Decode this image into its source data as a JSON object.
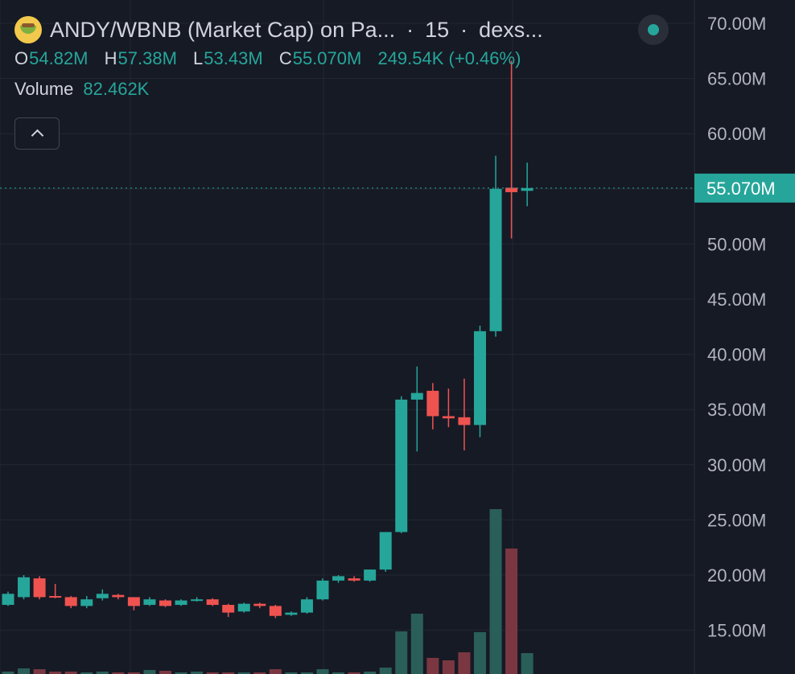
{
  "header": {
    "title": "ANDY/WBNB (Market Cap) on Pa...",
    "interval": "15",
    "source": "dexs..."
  },
  "ohlc": {
    "o_label": "O",
    "o": "54.82M",
    "h_label": "H",
    "h": "57.38M",
    "l_label": "L",
    "l": "53.43M",
    "c_label": "C",
    "c": "55.070M",
    "change": "249.54K (+0.46%)"
  },
  "volume": {
    "label": "Volume",
    "value": "82.462K"
  },
  "colors": {
    "up": "#26a69a",
    "down": "#ef5350",
    "background": "#161a25",
    "grid": "#232733"
  },
  "chart_data": {
    "type": "candlestick",
    "y_axis": {
      "ticks": [
        "70.00M",
        "65.00M",
        "60.00M",
        "55.00M",
        "50.00M",
        "45.00M",
        "40.00M",
        "35.00M",
        "30.00M",
        "25.00M",
        "20.00M",
        "15.00M"
      ],
      "tick_values": [
        70,
        65,
        60,
        55,
        50,
        45,
        40,
        35,
        30,
        25,
        20,
        15
      ],
      "unit": "M",
      "range": [
        11.5,
        72.5
      ]
    },
    "last_price": {
      "label": "55.070M",
      "value": 55.07
    },
    "candles": [
      {
        "o": 17.3,
        "h": 18.5,
        "l": 17.2,
        "c": 18.3
      },
      {
        "o": 18.0,
        "h": 20.0,
        "l": 17.8,
        "c": 19.8
      },
      {
        "o": 19.7,
        "h": 19.9,
        "l": 17.8,
        "c": 18.0
      },
      {
        "o": 18.1,
        "h": 19.2,
        "l": 17.9,
        "c": 18.0
      },
      {
        "o": 18.0,
        "h": 18.1,
        "l": 17.0,
        "c": 17.2
      },
      {
        "o": 17.2,
        "h": 18.1,
        "l": 17.0,
        "c": 17.8
      },
      {
        "o": 17.9,
        "h": 18.7,
        "l": 17.7,
        "c": 18.3
      },
      {
        "o": 18.2,
        "h": 18.3,
        "l": 17.8,
        "c": 18.0
      },
      {
        "o": 18.0,
        "h": 18.0,
        "l": 16.8,
        "c": 17.2
      },
      {
        "o": 17.3,
        "h": 18.0,
        "l": 17.2,
        "c": 17.8
      },
      {
        "o": 17.7,
        "h": 17.8,
        "l": 17.1,
        "c": 17.2
      },
      {
        "o": 17.3,
        "h": 17.8,
        "l": 17.2,
        "c": 17.7
      },
      {
        "o": 17.7,
        "h": 18.0,
        "l": 17.6,
        "c": 17.8
      },
      {
        "o": 17.8,
        "h": 17.9,
        "l": 17.2,
        "c": 17.3
      },
      {
        "o": 17.3,
        "h": 17.4,
        "l": 16.2,
        "c": 16.6
      },
      {
        "o": 16.7,
        "h": 17.5,
        "l": 16.6,
        "c": 17.4
      },
      {
        "o": 17.4,
        "h": 17.5,
        "l": 17.0,
        "c": 17.2
      },
      {
        "o": 17.2,
        "h": 17.3,
        "l": 16.1,
        "c": 16.3
      },
      {
        "o": 16.4,
        "h": 16.7,
        "l": 16.3,
        "c": 16.6
      },
      {
        "o": 16.6,
        "h": 18.0,
        "l": 16.5,
        "c": 17.8
      },
      {
        "o": 17.8,
        "h": 19.7,
        "l": 17.7,
        "c": 19.5
      },
      {
        "o": 19.5,
        "h": 20.0,
        "l": 19.3,
        "c": 19.9
      },
      {
        "o": 19.7,
        "h": 19.9,
        "l": 19.4,
        "c": 19.5
      },
      {
        "o": 19.5,
        "h": 20.5,
        "l": 19.4,
        "c": 20.5
      },
      {
        "o": 20.5,
        "h": 23.9,
        "l": 20.3,
        "c": 23.9
      },
      {
        "o": 23.9,
        "h": 36.2,
        "l": 23.8,
        "c": 35.9
      },
      {
        "o": 35.9,
        "h": 38.9,
        "l": 31.2,
        "c": 36.5
      },
      {
        "o": 36.7,
        "h": 37.4,
        "l": 33.2,
        "c": 34.4
      },
      {
        "o": 34.4,
        "h": 36.9,
        "l": 33.4,
        "c": 34.2
      },
      {
        "o": 34.3,
        "h": 37.8,
        "l": 31.3,
        "c": 33.6
      },
      {
        "o": 33.6,
        "h": 42.6,
        "l": 32.5,
        "c": 42.1
      },
      {
        "o": 42.1,
        "h": 58.0,
        "l": 41.6,
        "c": 55.0
      },
      {
        "o": 55.1,
        "h": 66.6,
        "l": 50.5,
        "c": 54.7
      },
      {
        "o": 54.82,
        "h": 57.38,
        "l": 53.43,
        "c": 55.07
      }
    ],
    "volumes": [
      0.3,
      0.7,
      0.6,
      0.3,
      0.3,
      0.2,
      0.3,
      0.2,
      0.2,
      0.5,
      0.4,
      0.2,
      0.3,
      0.2,
      0.2,
      0.2,
      0.2,
      0.6,
      0.2,
      0.2,
      0.6,
      0.2,
      0.2,
      0.3,
      0.8,
      5.3,
      7.5,
      2.0,
      1.7,
      2.7,
      5.2,
      20.5,
      15.6,
      2.6
    ]
  }
}
